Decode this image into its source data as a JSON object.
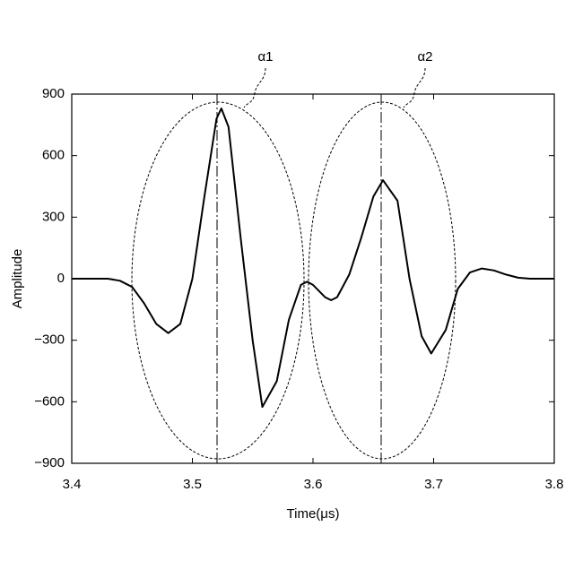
{
  "chart_data": {
    "type": "line",
    "xlabel": "Time(μs)",
    "ylabel": "Amplitude",
    "annotations": [
      "α1",
      "α2"
    ],
    "xlim": [
      3.4,
      3.8
    ],
    "xticks": [
      3.4,
      3.5,
      3.6,
      3.7,
      3.8
    ],
    "ylim": [
      -900,
      900
    ],
    "yticks": [
      {
        "value": -900,
        "label": "−900"
      },
      {
        "value": -600,
        "label": "−600"
      },
      {
        "value": -300,
        "label": "−300"
      },
      0,
      300,
      600,
      900
    ],
    "series": [
      {
        "color": "#000000",
        "x": [
          3.4,
          3.43,
          3.44,
          3.45,
          3.46,
          3.47,
          3.48,
          3.49,
          3.5,
          3.51,
          3.52,
          3.524,
          3.53,
          3.54,
          3.55,
          3.558,
          3.57,
          3.58,
          3.59,
          3.595,
          3.6,
          3.61,
          3.615,
          3.62,
          3.63,
          3.64,
          3.65,
          3.658,
          3.67,
          3.68,
          3.69,
          3.698,
          3.71,
          3.72,
          3.73,
          3.74,
          3.75,
          3.76,
          3.77,
          3.78,
          3.8
        ],
        "values": [
          0,
          0,
          -10,
          -40,
          -120,
          -220,
          -265,
          -220,
          0,
          400,
          780,
          830,
          740,
          200,
          -300,
          -625,
          -500,
          -200,
          -30,
          -15,
          -30,
          -90,
          -105,
          -90,
          20,
          200,
          400,
          480,
          380,
          0,
          -280,
          -365,
          -250,
          -50,
          30,
          50,
          40,
          20,
          5,
          0,
          0
        ]
      }
    ]
  }
}
